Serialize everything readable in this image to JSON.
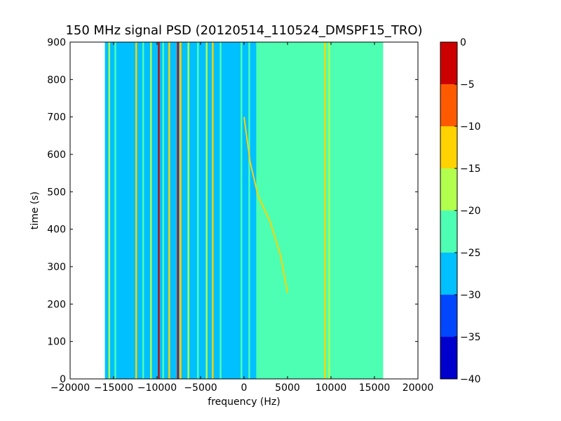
{
  "chart_data": {
    "type": "heatmap",
    "title": "150 MHz signal PSD (20120514_110524_DMSPF15_TRO)",
    "xlabel": "frequency (Hz)",
    "ylabel": "time (s)",
    "xlim": [
      -20000,
      20000
    ],
    "ylim": [
      0,
      900
    ],
    "xticks": [
      -20000,
      -15000,
      -10000,
      -5000,
      0,
      5000,
      10000,
      15000,
      20000
    ],
    "xtick_labels": [
      "−20000",
      "−15000",
      "−10000",
      "−5000",
      "0",
      "5000",
      "10000",
      "15000",
      "20000"
    ],
    "yticks": [
      0,
      100,
      200,
      300,
      400,
      500,
      600,
      700,
      800,
      900
    ],
    "ytick_labels": [
      "0",
      "100",
      "200",
      "300",
      "400",
      "500",
      "600",
      "700",
      "800",
      "900"
    ],
    "data_extent_x": [
      -16000,
      16000
    ],
    "colorbar": {
      "range": [
        -40,
        0
      ],
      "ticks": [
        0,
        -5,
        -10,
        -15,
        -20,
        -25,
        -30,
        -35,
        -40
      ],
      "tick_labels": [
        "0",
        "−5",
        "−10",
        "−15",
        "−20",
        "−25",
        "−30",
        "−35",
        "−40"
      ],
      "levels": [
        {
          "from": -40,
          "to": -35,
          "color": "#0000cd"
        },
        {
          "from": -35,
          "to": -30,
          "color": "#0047ff"
        },
        {
          "from": -30,
          "to": -25,
          "color": "#00c0ff"
        },
        {
          "from": -25,
          "to": -20,
          "color": "#4dffb2"
        },
        {
          "from": -20,
          "to": -15,
          "color": "#b2ff4d"
        },
        {
          "from": -15,
          "to": -10,
          "color": "#ffd200"
        },
        {
          "from": -10,
          "to": -5,
          "color": "#ff5a00"
        },
        {
          "from": -5,
          "to": 0,
          "color": "#cd0000"
        }
      ]
    },
    "regions": [
      {
        "x": [
          -16000,
          0
        ],
        "value": -27.5
      },
      {
        "x": [
          0,
          1500
        ],
        "value": -27.5
      },
      {
        "x": [
          1500,
          16000
        ],
        "value": -22.5
      }
    ],
    "spectral_lines": [
      {
        "x": -15500,
        "value": -17.5
      },
      {
        "x": -14800,
        "value": -22.5
      },
      {
        "x": -12400,
        "value": -12.5
      },
      {
        "x": -11600,
        "value": -22.5
      },
      {
        "x": -10700,
        "value": -17.5
      },
      {
        "x": -9800,
        "value": -2.5
      },
      {
        "x": -9300,
        "value": -22.5
      },
      {
        "x": -8600,
        "value": -12.5
      },
      {
        "x": -7600,
        "value": -2.5
      },
      {
        "x": -7300,
        "value": -12.5
      },
      {
        "x": -6400,
        "value": -17.5
      },
      {
        "x": -5300,
        "value": -22.5
      },
      {
        "x": -4300,
        "value": -17.5
      },
      {
        "x": -3600,
        "value": -12.5
      },
      {
        "x": -2700,
        "value": -22.5
      },
      {
        "x": -300,
        "value": -22.5
      },
      {
        "x": 600,
        "value": -22.5
      },
      {
        "x": 1500,
        "value": -22.5
      },
      {
        "x": 9300,
        "value": -12.5
      },
      {
        "x": 9800,
        "value": -17.5
      },
      {
        "x": 14000,
        "value": -22.5
      }
    ],
    "drifting_trace": {
      "value": -12.5,
      "points": [
        [
          5000,
          230
        ],
        [
          4200,
          330
        ],
        [
          3000,
          420
        ],
        [
          1600,
          490
        ],
        [
          700,
          580
        ],
        [
          0,
          700
        ]
      ]
    }
  }
}
